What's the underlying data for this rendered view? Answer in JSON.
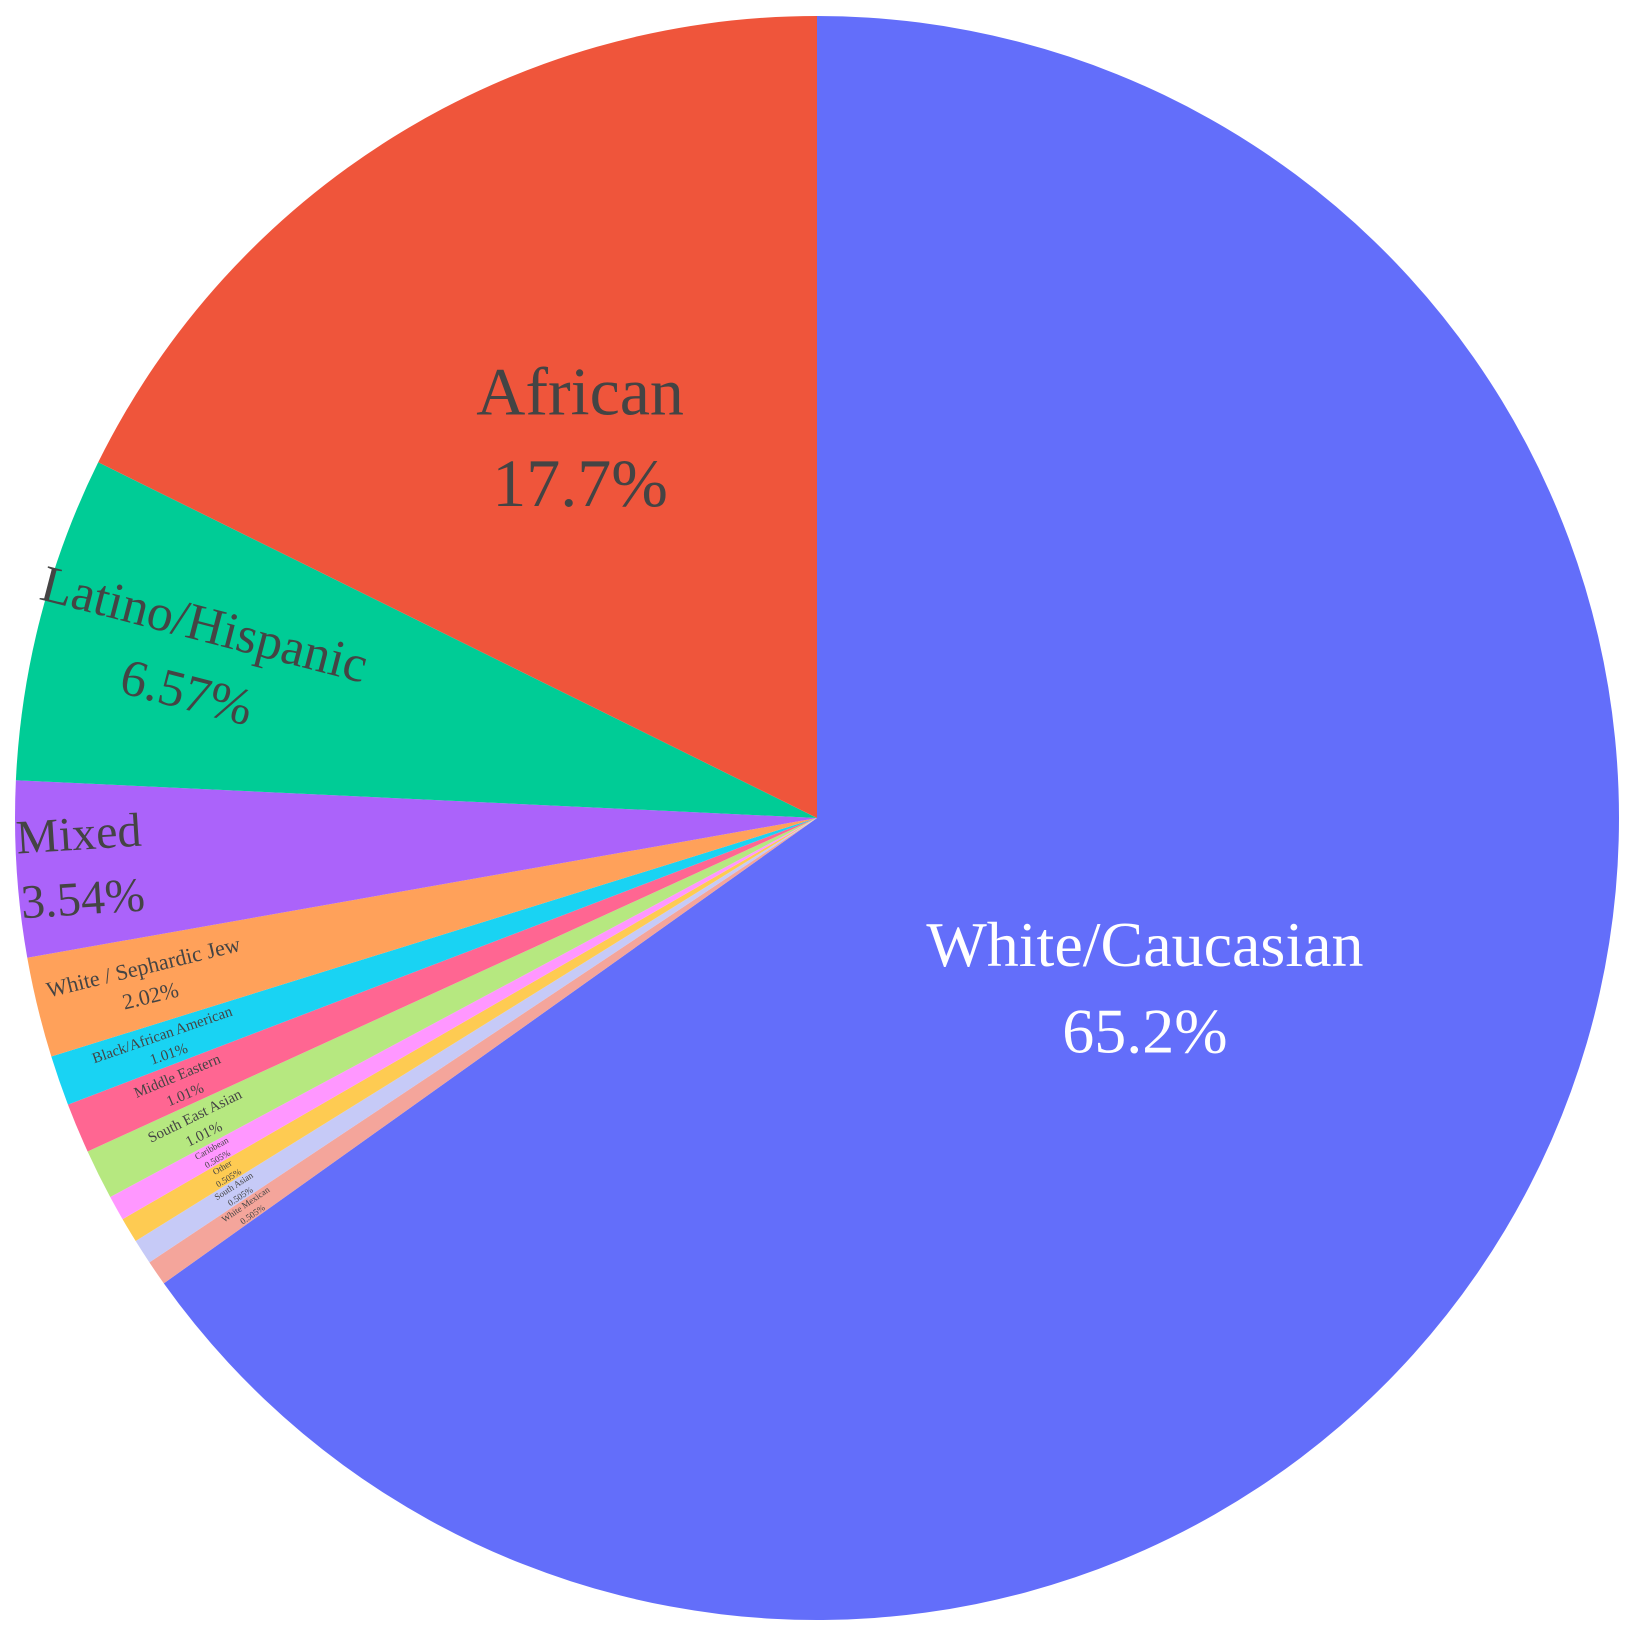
{
  "chart_data": {
    "type": "pie",
    "title": "",
    "start_angle_deg": 0,
    "direction": "clockwise",
    "slices": [
      {
        "label": "White/Caucasian",
        "value_text": "65.2%",
        "value": 65.2,
        "color": "#636efa",
        "text_color": "#ffffff"
      },
      {
        "label": "White Mexican",
        "value_text": "0.505%",
        "value": 0.505,
        "color": "#f4a59b",
        "text_color": "#444444"
      },
      {
        "label": "South Asian",
        "value_text": "0.505%",
        "value": 0.505,
        "color": "#c6caf7",
        "text_color": "#444444"
      },
      {
        "label": "Other",
        "value_text": "0.505%",
        "value": 0.505,
        "color": "#fecb52",
        "text_color": "#444444"
      },
      {
        "label": "Caribbean",
        "value_text": "0.505%",
        "value": 0.505,
        "color": "#ff97ff",
        "text_color": "#444444"
      },
      {
        "label": "South East Asian",
        "value_text": "1.01%",
        "value": 1.01,
        "color": "#b6e880",
        "text_color": "#444444"
      },
      {
        "label": "Middle Eastern",
        "value_text": "1.01%",
        "value": 1.01,
        "color": "#ff6692",
        "text_color": "#444444"
      },
      {
        "label": "Black/African American",
        "value_text": "1.01%",
        "value": 1.01,
        "color": "#19d3f3",
        "text_color": "#444444"
      },
      {
        "label": "White / Sephardic Jew",
        "value_text": "2.02%",
        "value": 2.02,
        "color": "#ffa15a",
        "text_color": "#444444"
      },
      {
        "label": "Mixed",
        "value_text": "3.54%",
        "value": 3.54,
        "color": "#ab63fa",
        "text_color": "#444444"
      },
      {
        "label": "Latino/Hispanic",
        "value_text": "6.57%",
        "value": 6.57,
        "color": "#00cc96",
        "text_color": "#444444"
      },
      {
        "label": "African",
        "value_text": "17.7%",
        "value": 17.7,
        "color": "#ef553b",
        "text_color": "#444444"
      }
    ]
  }
}
